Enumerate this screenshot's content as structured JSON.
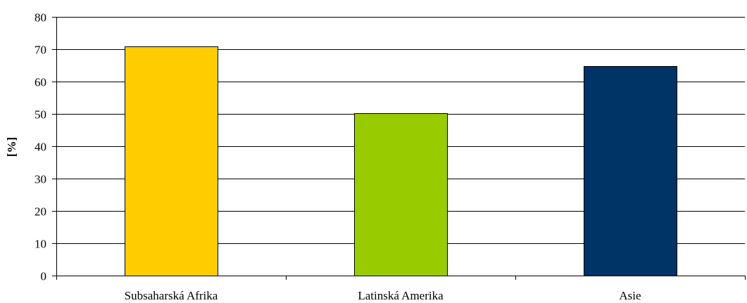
{
  "chart_data": {
    "type": "bar",
    "title": "",
    "xlabel": "",
    "ylabel": "[%]",
    "categories": [
      "Subsaharská Afrika",
      "Latinská Amerika",
      "Asie"
    ],
    "values": [
      70.8,
      50.3,
      64.7
    ],
    "colors": [
      "#FFCC00",
      "#99CC00",
      "#003366"
    ],
    "ylim": [
      0,
      80
    ],
    "yticks": [
      0,
      10,
      20,
      30,
      40,
      50,
      60,
      70,
      80
    ],
    "grid": true,
    "legend": "none"
  }
}
